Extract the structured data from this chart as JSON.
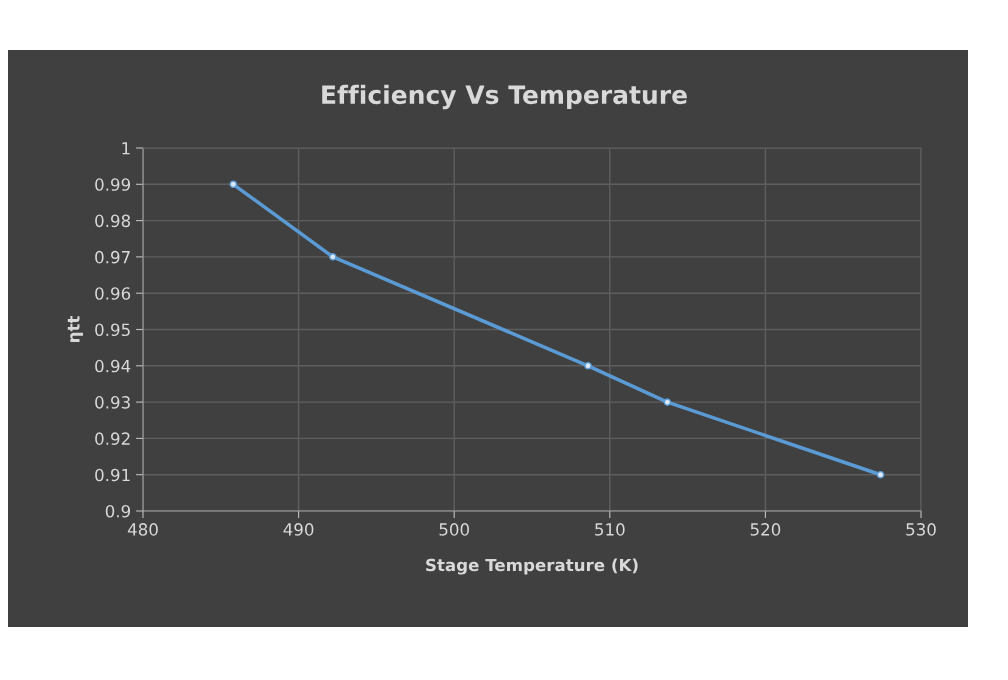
{
  "chart_data": {
    "type": "line",
    "title": "Efficiency Vs Temperature",
    "xlabel": "Stage Temperature (K)",
    "ylabel": "ηtt",
    "series": [
      {
        "color": "#5b9bd5",
        "x": [
          485.8,
          492.2,
          508.6,
          513.7,
          527.4
        ],
        "values": [
          0.99,
          0.97,
          0.94,
          0.93,
          0.91
        ]
      }
    ],
    "xlim": [
      480,
      530
    ],
    "xticks": [
      480,
      490,
      500,
      510,
      520,
      530
    ],
    "ylim": [
      0.9,
      1
    ],
    "yticks": [
      {
        "value": 0.9,
        "label": "0.9"
      },
      0.91,
      0.92,
      0.93,
      0.94,
      0.95,
      0.96,
      0.97,
      0.98,
      0.99,
      {
        "value": 1,
        "label": "1"
      }
    ],
    "grid": true,
    "marker": "circle",
    "line_style": "solid"
  }
}
